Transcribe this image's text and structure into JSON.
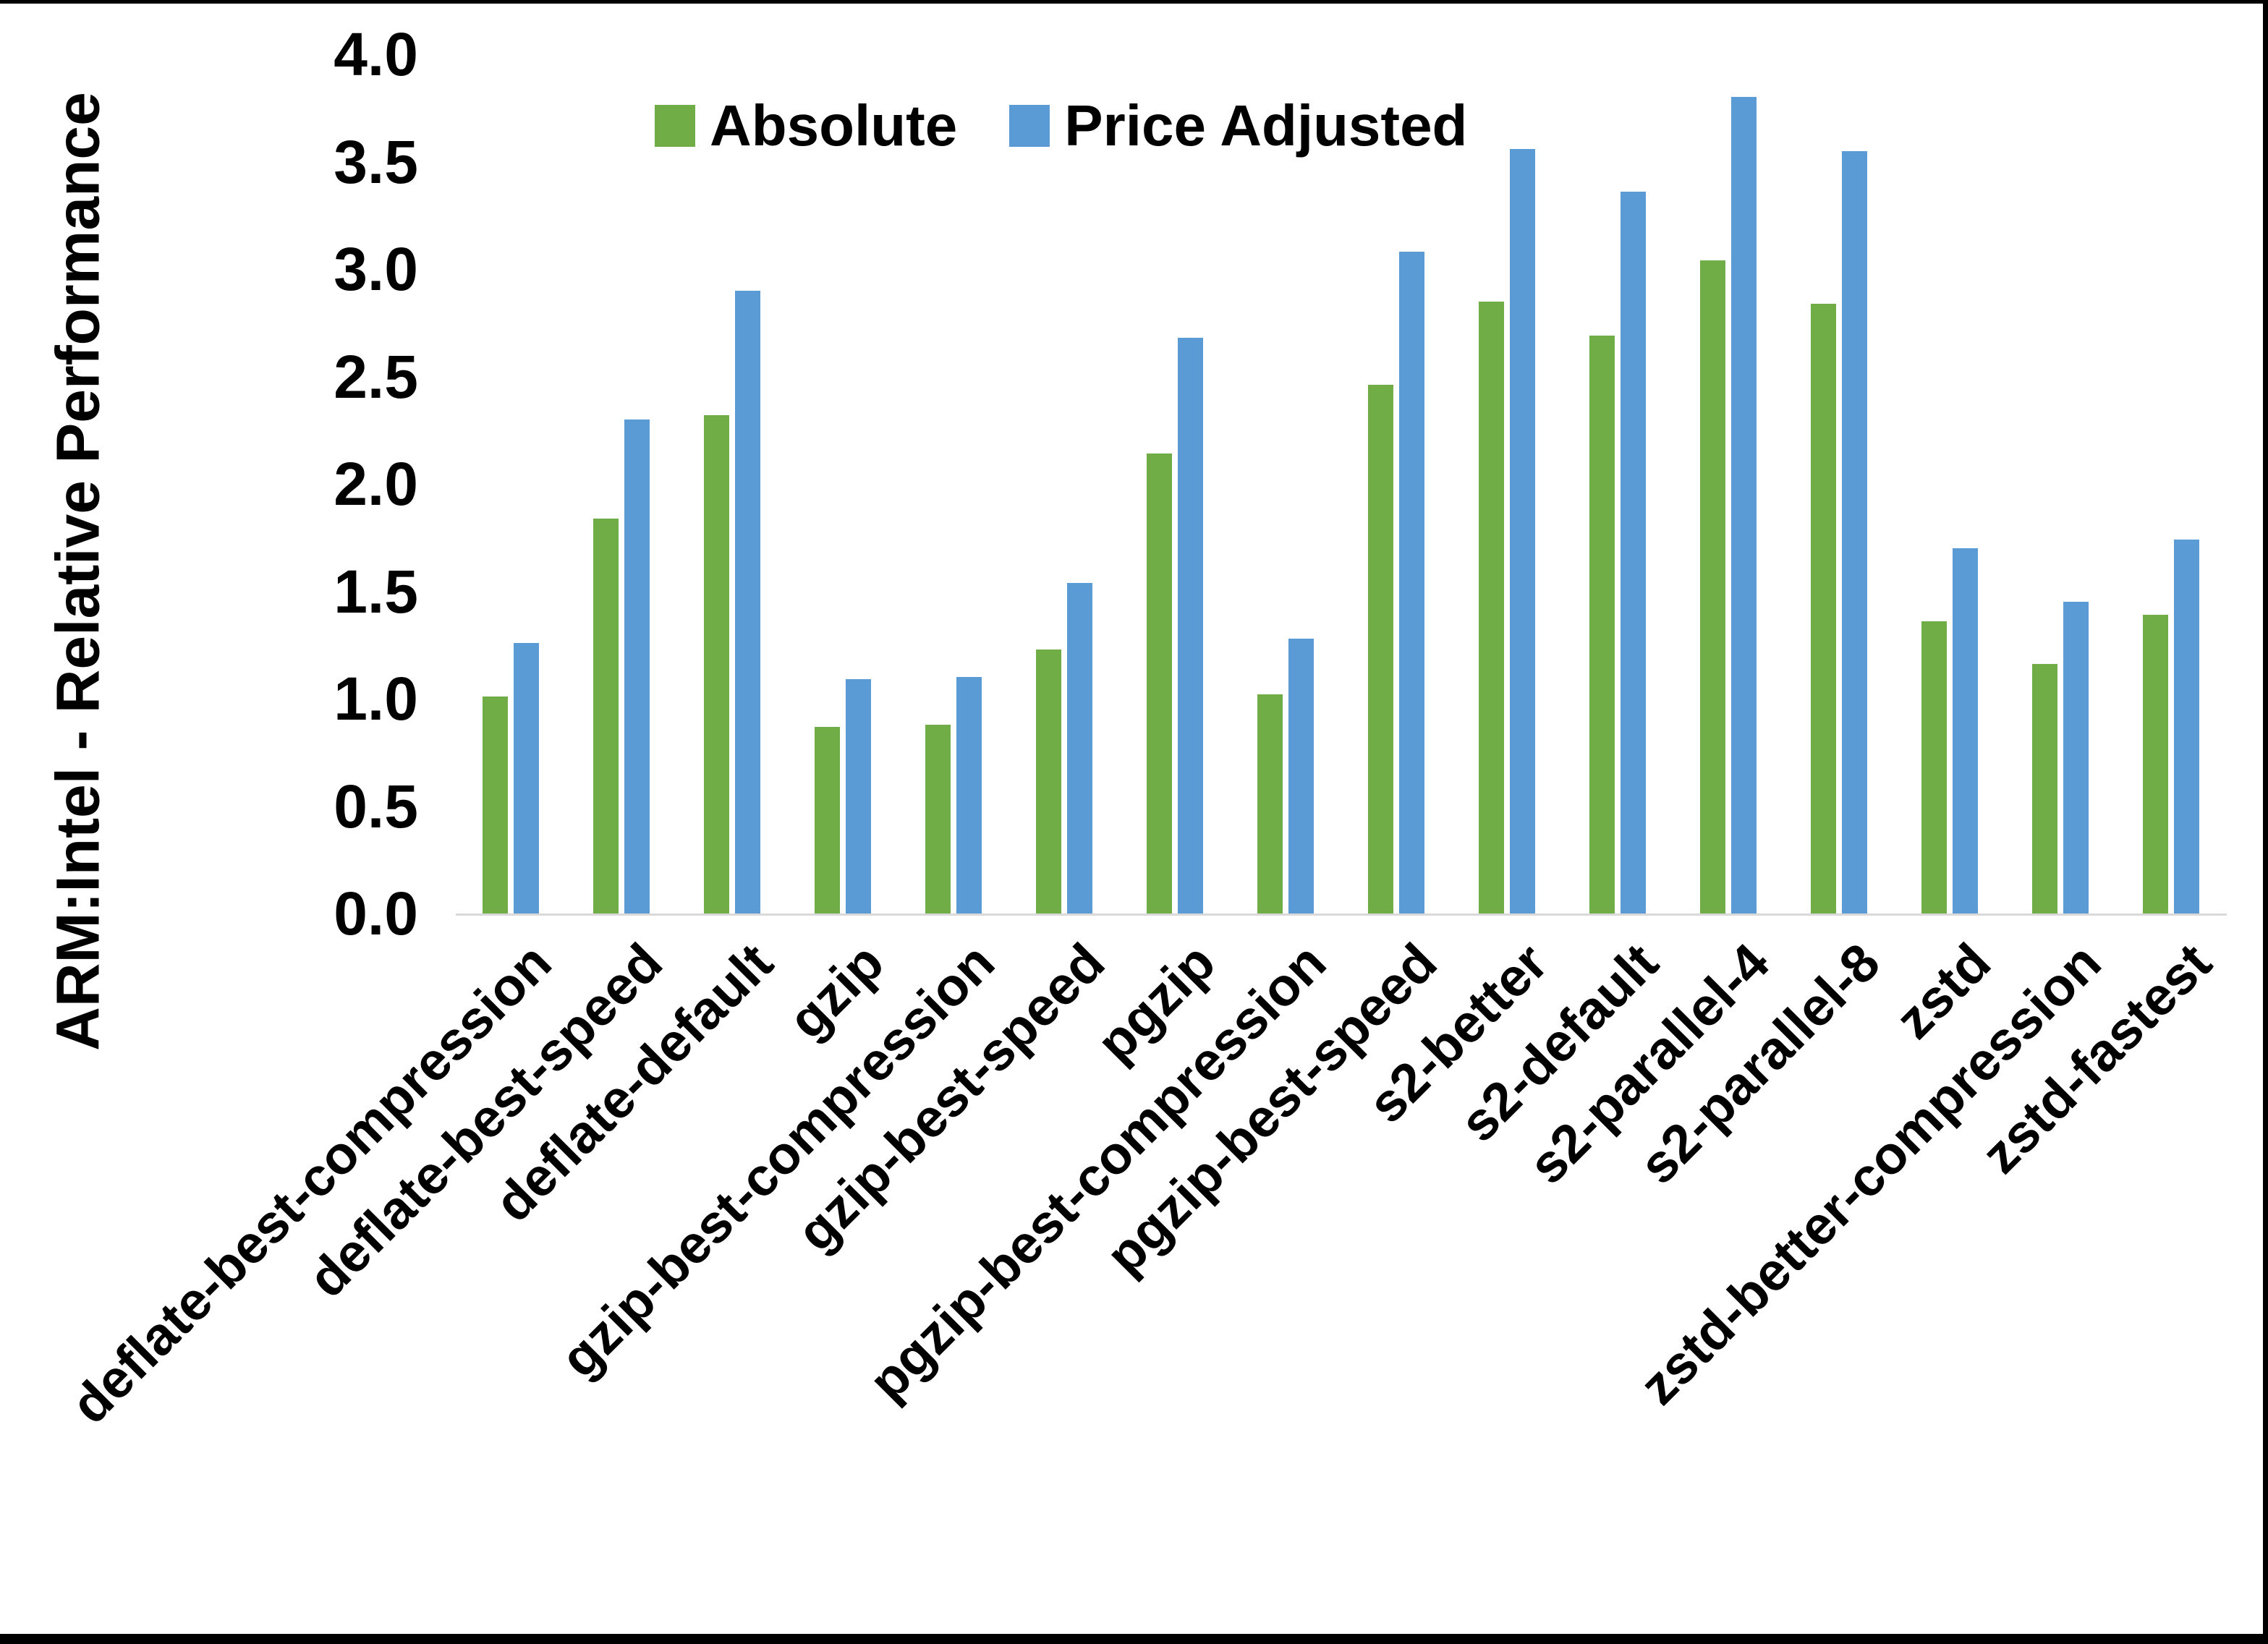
{
  "page": {
    "background": "#ffffff",
    "frame_color": "#000000",
    "axis_line_color": "#d9d9d9",
    "text_color": "#000000"
  },
  "chart_data": {
    "type": "bar",
    "title": "",
    "xlabel": "",
    "ylabel": "ARM:Intel - Relative Performance",
    "ylim": [
      0.0,
      4.0
    ],
    "ytick_step": 0.5,
    "ytick_labels": [
      "4.0",
      "3.5",
      "3.0",
      "2.5",
      "2.0",
      "1.5",
      "1.0",
      "0.5",
      "0.0"
    ],
    "grid": false,
    "legend_position": "top-center",
    "x_label_rotation_deg": 45,
    "categories": [
      "deflate-best-compression",
      "deflate-best-speed",
      "deflate-default",
      "gzip",
      "gzip-best-compression",
      "gzip-best-speed",
      "pgzip",
      "pgzip-best-compression",
      "pgzip-best-speed",
      "s2-better",
      "s2-default",
      "s2-parallel-4",
      "s2-parallel-8",
      "zstd",
      "zstd-better-compression",
      "zstd-fastest"
    ],
    "series": [
      {
        "name": "Absolute",
        "color": "#70AD47",
        "values": [
          1.01,
          1.84,
          2.32,
          0.87,
          0.88,
          1.23,
          2.14,
          1.02,
          2.46,
          2.85,
          2.69,
          3.04,
          2.84,
          1.36,
          1.16,
          1.39
        ]
      },
      {
        "name": "Price Adjusted",
        "color": "#5B9BD5",
        "values": [
          1.26,
          2.3,
          2.9,
          1.09,
          1.1,
          1.54,
          2.68,
          1.28,
          3.08,
          3.56,
          3.36,
          3.8,
          3.55,
          1.7,
          1.45,
          1.74
        ]
      }
    ]
  }
}
